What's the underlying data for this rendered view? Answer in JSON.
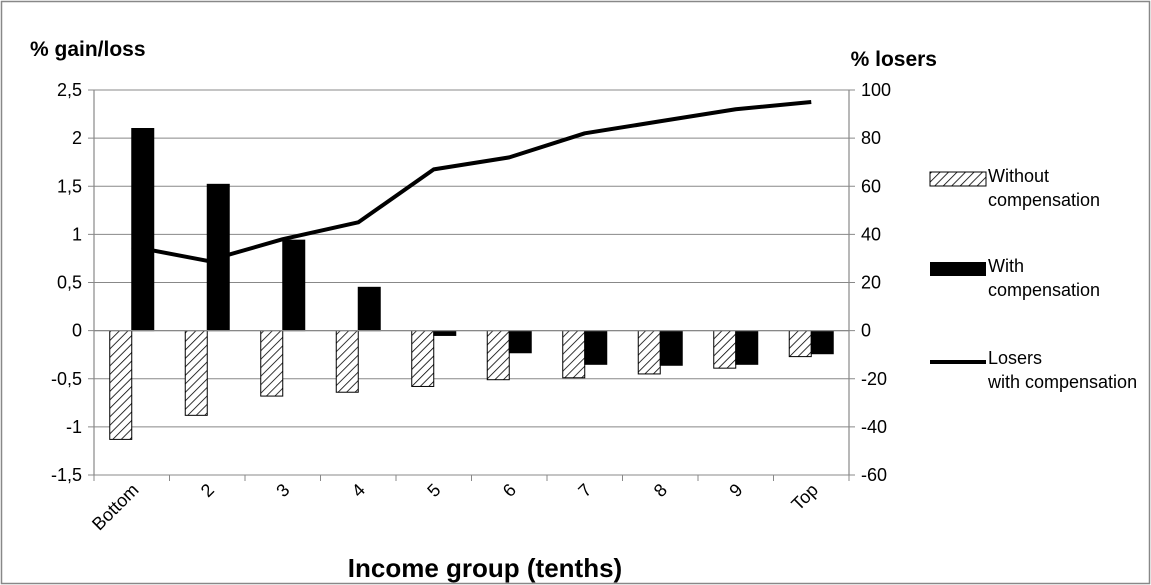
{
  "chart_data": {
    "type": "bar",
    "title": "",
    "ylabel": "% gain/loss",
    "y2label": "% losers",
    "xlabel": "Income group (tenths)",
    "categories": [
      "Bottom",
      "2",
      "3",
      "4",
      "5",
      "6",
      "7",
      "8",
      "9",
      "Top"
    ],
    "ylim": [
      -1.5,
      2.5
    ],
    "y2lim": [
      -60,
      100
    ],
    "yticks": [
      "2,5",
      "2",
      "1,5",
      "1",
      "0,5",
      "0",
      "-0,5",
      "-1",
      "-1,5"
    ],
    "y2ticks": [
      "100",
      "80",
      "60",
      "40",
      "20",
      "0",
      "-20",
      "-40",
      "-60"
    ],
    "grid": true,
    "legend_position": "right",
    "series": [
      {
        "name": "Without compensation",
        "kind": "bar",
        "pattern": "diagonal-hatch",
        "axis": "left",
        "values": [
          -1.13,
          -0.88,
          -0.68,
          -0.64,
          -0.58,
          -0.51,
          -0.49,
          -0.45,
          -0.39,
          -0.27
        ]
      },
      {
        "name": "With compensation",
        "kind": "bar",
        "color": "#000000",
        "axis": "left",
        "values": [
          2.1,
          1.52,
          0.94,
          0.45,
          -0.05,
          -0.23,
          -0.35,
          -0.36,
          -0.35,
          -0.24
        ]
      },
      {
        "name": "Losers with compensation",
        "kind": "line",
        "color": "#000000",
        "axis": "right",
        "values": [
          35,
          29,
          38,
          45,
          67,
          72,
          82,
          87,
          92,
          95
        ]
      }
    ]
  }
}
